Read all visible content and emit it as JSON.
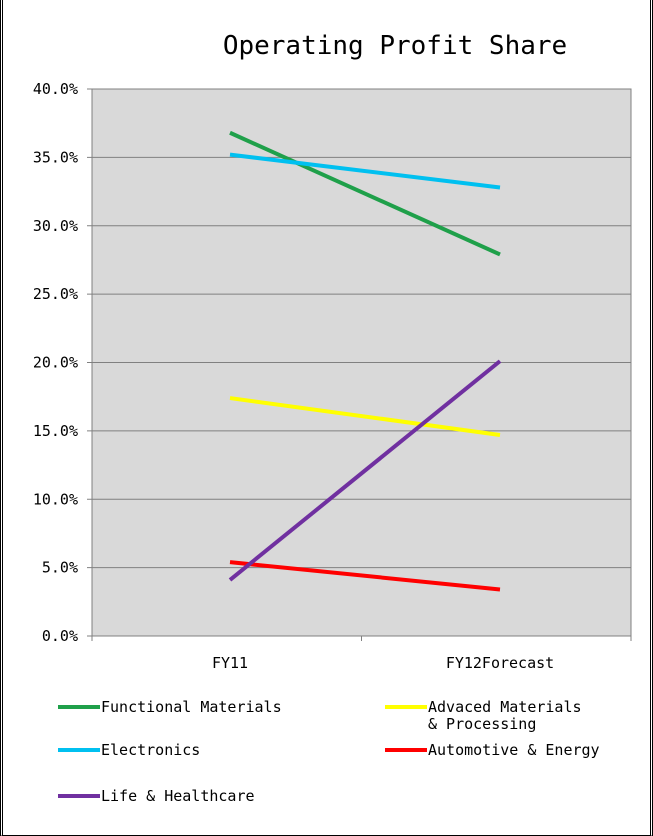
{
  "chart_data": {
    "type": "line",
    "title": "Operating Profit Share",
    "categories": [
      "FY11",
      "FY12Forecast"
    ],
    "ylim": [
      0,
      40
    ],
    "yticks": [
      "0.0%",
      "5.0%",
      "10.0%",
      "15.0%",
      "20.0%",
      "25.0%",
      "30.0%",
      "35.0%",
      "40.0%"
    ],
    "grid": true,
    "legend_position": "bottom",
    "plot_background": "#d9d9d9",
    "series": [
      {
        "name": "Functional Materials",
        "values": [
          36.8,
          27.9
        ],
        "color": "#1fa04a"
      },
      {
        "name": "Advaced Materials\n& Processing",
        "values": [
          17.4,
          14.7
        ],
        "color": "#ffff00"
      },
      {
        "name": "Electronics",
        "values": [
          35.2,
          32.8
        ],
        "color": "#00c0f0"
      },
      {
        "name": "Automotive & Energy",
        "values": [
          5.4,
          3.4
        ],
        "color": "#ff0000"
      },
      {
        "name": "Life & Healthcare",
        "values": [
          4.1,
          20.1
        ],
        "color": "#7030a0"
      }
    ]
  }
}
